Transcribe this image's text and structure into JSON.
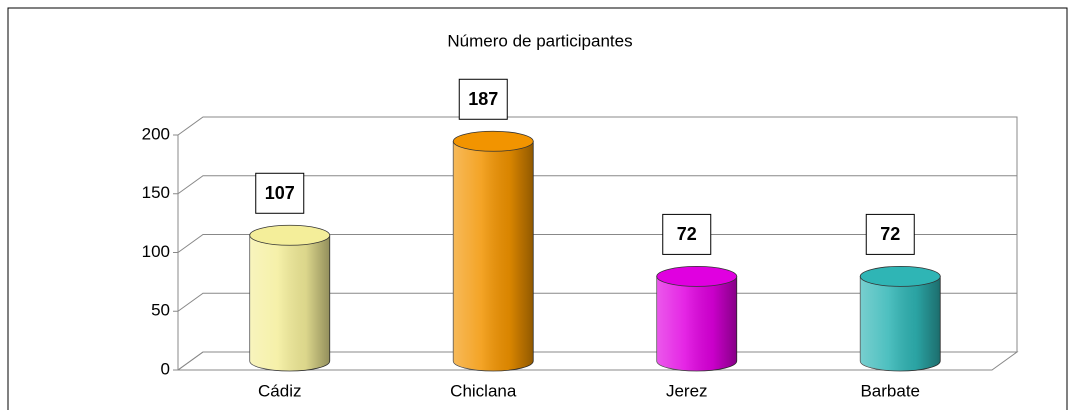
{
  "chart_data": {
    "type": "bar",
    "title": "Número de participantes",
    "categories": [
      "Cádiz",
      "Chiclana",
      "Jerez",
      "Barbate"
    ],
    "values": [
      107,
      187,
      72,
      72
    ],
    "colors": [
      "#f4ee9a",
      "#f29400",
      "#e000e0",
      "#2fb5b5"
    ],
    "ylim": [
      0,
      200
    ],
    "yticks": [
      0,
      50,
      100,
      150,
      200
    ],
    "grid": true
  }
}
